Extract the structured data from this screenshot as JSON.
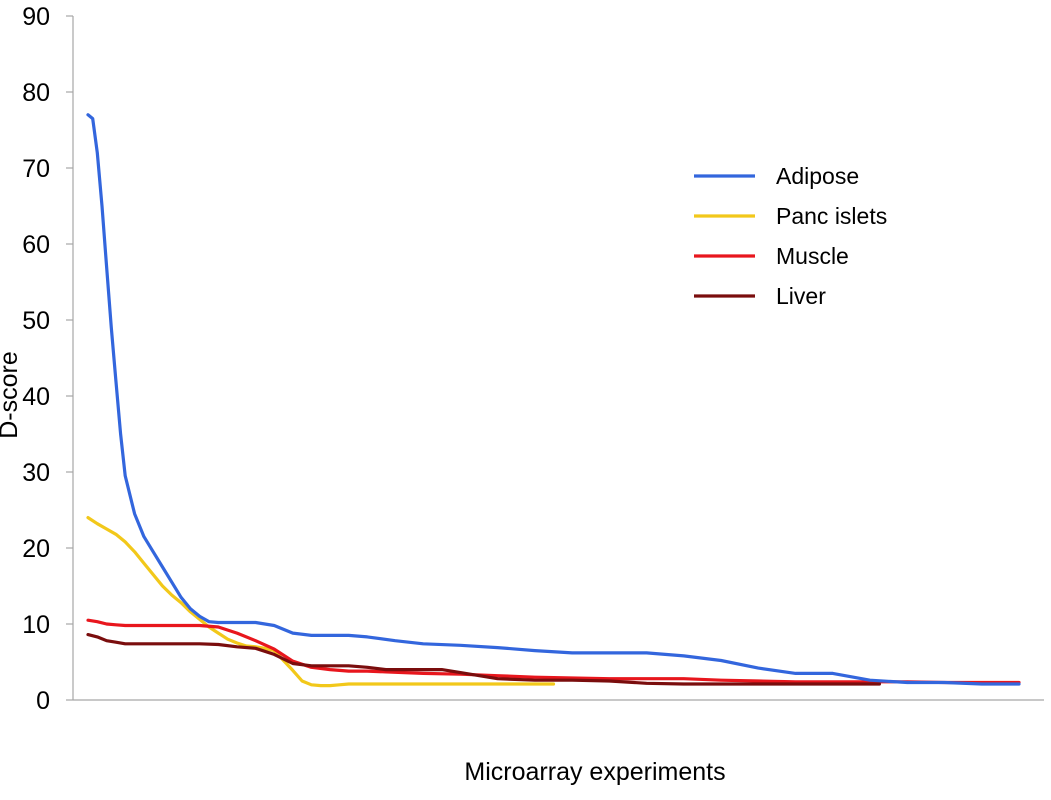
{
  "chart_data": {
    "type": "line",
    "xlabel": "Microarray experiments",
    "ylabel": "D-score",
    "ylim": [
      0,
      90
    ],
    "yticks": [
      0,
      10,
      20,
      30,
      40,
      50,
      60,
      70,
      80,
      90
    ],
    "xlim": [
      0,
      100
    ],
    "grid": false,
    "legend_position": "right",
    "series": [
      {
        "name": "Adipose",
        "color": "#3366dd",
        "x": [
          0,
          0.5,
          1,
          1.5,
          2,
          2.5,
          3,
          3.5,
          4,
          5,
          6,
          7,
          8,
          9,
          10,
          11,
          12,
          13,
          14,
          16,
          18,
          20,
          22,
          24,
          26,
          28,
          30,
          33,
          36,
          40,
          44,
          48,
          52,
          56,
          60,
          64,
          68,
          72,
          76,
          80,
          84,
          88,
          92,
          96,
          100
        ],
        "y": [
          77,
          76.5,
          72,
          65,
          57,
          49,
          42,
          35,
          29.5,
          24.5,
          21.5,
          19.5,
          17.5,
          15.5,
          13.5,
          12,
          11,
          10.3,
          10.2,
          10.2,
          10.2,
          9.8,
          8.8,
          8.5,
          8.5,
          8.5,
          8.3,
          7.8,
          7.4,
          7.2,
          6.9,
          6.5,
          6.2,
          6.2,
          6.2,
          5.8,
          5.2,
          4.2,
          3.5,
          3.5,
          2.6,
          2.3,
          2.3,
          2.1,
          2.1
        ]
      },
      {
        "name": "Panc islets",
        "color": "#f2c81a",
        "x": [
          0,
          1,
          2,
          3,
          4,
          5,
          6,
          7,
          8,
          9,
          10,
          11,
          12,
          13,
          14,
          15,
          16,
          17,
          18,
          19,
          20,
          21,
          22,
          23,
          24,
          25,
          26,
          27,
          28,
          29,
          30,
          31,
          32,
          33,
          34,
          35,
          36,
          38,
          40,
          42,
          44,
          46,
          48,
          50
        ],
        "y": [
          24,
          23.2,
          22.5,
          21.8,
          20.8,
          19.5,
          18,
          16.5,
          15,
          13.8,
          12.8,
          11.6,
          10.6,
          9.6,
          8.8,
          8,
          7.5,
          7.1,
          7,
          6.8,
          6.5,
          5.2,
          3.9,
          2.5,
          2,
          1.9,
          1.9,
          2,
          2.1,
          2.1,
          2.1,
          2.1,
          2.1,
          2.1,
          2.1,
          2.1,
          2.1,
          2.1,
          2.1,
          2.1,
          2.1,
          2.1,
          2.1,
          2.1
        ]
      },
      {
        "name": "Muscle",
        "color": "#e8161d",
        "x": [
          0,
          1,
          2,
          3,
          4,
          5,
          6,
          8,
          10,
          12,
          14,
          16,
          18,
          20,
          22,
          24,
          26,
          28,
          30,
          32,
          34,
          36,
          40,
          44,
          48,
          52,
          56,
          60,
          64,
          68,
          72,
          76,
          80,
          84,
          88,
          92,
          96,
          100
        ],
        "y": [
          10.5,
          10.3,
          10,
          9.9,
          9.8,
          9.8,
          9.8,
          9.8,
          9.8,
          9.8,
          9.6,
          8.8,
          7.8,
          6.7,
          5.1,
          4.3,
          4,
          3.8,
          3.8,
          3.7,
          3.6,
          3.5,
          3.4,
          3.2,
          3,
          2.9,
          2.8,
          2.8,
          2.8,
          2.6,
          2.5,
          2.4,
          2.4,
          2.4,
          2.4,
          2.3,
          2.3,
          2.3
        ]
      },
      {
        "name": "Liver",
        "color": "#7a0d0d",
        "x": [
          0,
          1,
          2,
          3,
          4,
          5,
          6,
          8,
          10,
          12,
          14,
          16,
          18,
          20,
          22,
          24,
          26,
          28,
          30,
          32,
          34,
          36,
          38,
          40,
          44,
          48,
          52,
          56,
          60,
          64,
          68,
          72,
          76,
          80,
          84,
          85
        ],
        "y": [
          8.6,
          8.3,
          7.8,
          7.6,
          7.4,
          7.4,
          7.4,
          7.4,
          7.4,
          7.4,
          7.3,
          7,
          6.8,
          6,
          4.8,
          4.5,
          4.5,
          4.5,
          4.3,
          4,
          4,
          4,
          4,
          3.6,
          2.8,
          2.6,
          2.6,
          2.5,
          2.2,
          2.1,
          2.1,
          2.1,
          2.1,
          2.1,
          2.1,
          2.1
        ]
      }
    ]
  }
}
